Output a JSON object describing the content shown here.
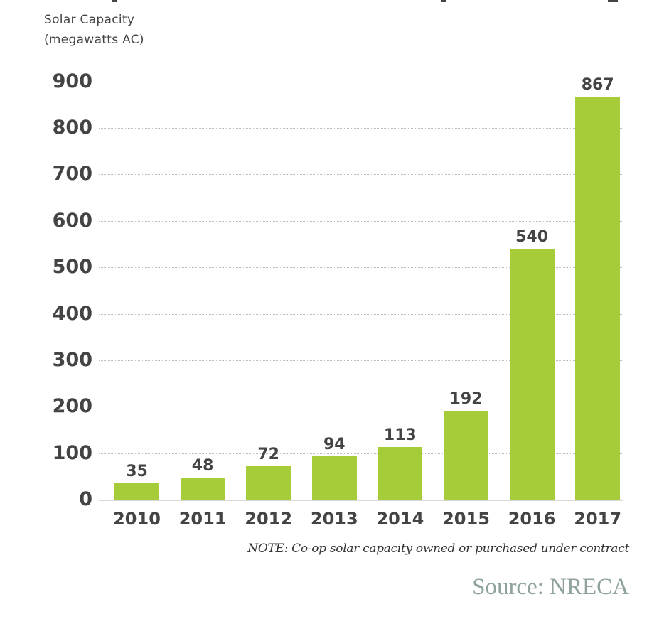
{
  "chart_data": {
    "type": "bar",
    "title": "",
    "ylabel": "Solar Capacity (megawatts AC)",
    "xlabel": "",
    "categories": [
      "2010",
      "2011",
      "2012",
      "2013",
      "2014",
      "2015",
      "2016",
      "2017"
    ],
    "values": [
      35,
      48,
      72,
      94,
      113,
      192,
      540,
      867
    ],
    "data_labels": [
      "35",
      "48",
      "72",
      "94",
      "113",
      "192",
      "540",
      "867"
    ],
    "ylim": [
      0,
      900
    ],
    "yticks": [
      0,
      100,
      200,
      300,
      400,
      500,
      600,
      700,
      800,
      900
    ],
    "grid": true,
    "legend": null,
    "bar_color": "#a6cd39",
    "annotations": [
      "NOTE: Co-op solar capacity owned or purchased under contract",
      "Source: NRECA"
    ]
  },
  "axis": {
    "ylabel_line1": "Solar Capacity",
    "ylabel_line2": "(megawatts AC)",
    "yticks": [
      "900",
      "800",
      "700",
      "600",
      "500",
      "400",
      "300",
      "200",
      "100",
      "0"
    ]
  },
  "bars": [
    {
      "year": "2010",
      "label": "35"
    },
    {
      "year": "2011",
      "label": "48"
    },
    {
      "year": "2012",
      "label": "72"
    },
    {
      "year": "2013",
      "label": "94"
    },
    {
      "year": "2014",
      "label": "113"
    },
    {
      "year": "2015",
      "label": "192"
    },
    {
      "year": "2016",
      "label": "540"
    },
    {
      "year": "2017",
      "label": "867"
    }
  ],
  "footer": {
    "note": "NOTE: Co-op solar capacity owned or purchased under contract",
    "source": "Source: NRECA"
  },
  "colors": {
    "bar": "#a6cd39",
    "text": "#444444",
    "source": "#8fa39c"
  }
}
